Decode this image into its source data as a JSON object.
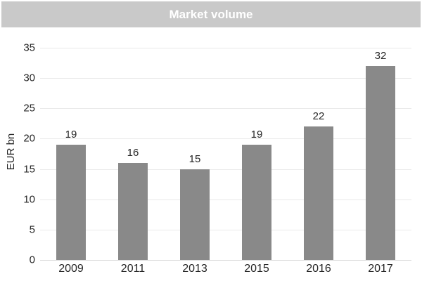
{
  "header": {
    "title": "Market volume"
  },
  "colors": {
    "header_bg": "#c9c9c9",
    "header_text": "#ffffff",
    "bar": "#898989",
    "gridline": "#e9e9e9",
    "axis_line": "#d9d9d9",
    "text": "#262626",
    "background": "#ffffff"
  },
  "chart_data": {
    "type": "bar",
    "title": "Market volume",
    "categories": [
      "2009",
      "2011",
      "2013",
      "2015",
      "2016",
      "2017"
    ],
    "values": [
      19,
      16,
      15,
      19,
      22,
      32
    ],
    "xlabel": "",
    "ylabel": "EUR bn",
    "ylim": [
      0,
      35
    ],
    "ytick_step": 5,
    "yticks": [
      0,
      5,
      10,
      15,
      20,
      25,
      30,
      35
    ],
    "grid": true,
    "bar_labels_shown": true,
    "legend": "none"
  }
}
